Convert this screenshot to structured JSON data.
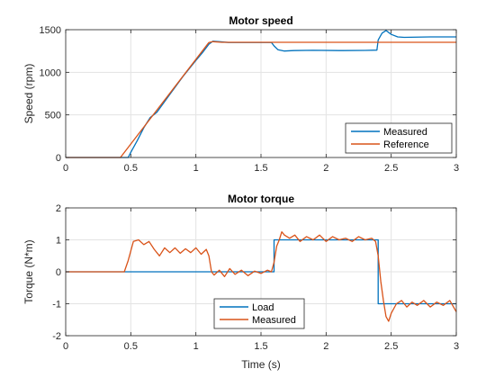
{
  "chart_data": [
    {
      "type": "line",
      "title": "Motor speed",
      "xlabel": "",
      "ylabel": "Speed (rpm)",
      "xlim": [
        0,
        3
      ],
      "ylim": [
        0,
        1500
      ],
      "xticks": [
        0,
        0.5,
        1,
        1.5,
        2,
        2.5,
        3
      ],
      "yticks": [
        0,
        500,
        1000,
        1500
      ],
      "xtick_labels": [
        "0",
        "0.5",
        "1",
        "1.5",
        "2",
        "2.5",
        "3"
      ],
      "ytick_labels": [
        "0",
        "500",
        "1000",
        "1500"
      ],
      "grid": true,
      "legend_position": "bottom-right",
      "series": [
        {
          "name": "Measured",
          "color": "#0072BD",
          "x": [
            0,
            0.48,
            0.5,
            0.55,
            0.6,
            0.65,
            0.7,
            0.8,
            0.9,
            1.0,
            1.05,
            1.1,
            1.13,
            1.18,
            1.25,
            1.4,
            1.58,
            1.6,
            1.63,
            1.68,
            1.75,
            1.9,
            2.1,
            2.3,
            2.39,
            2.4,
            2.43,
            2.46,
            2.5,
            2.55,
            2.6,
            2.8,
            3.0
          ],
          "y": [
            0,
            0,
            60,
            200,
            350,
            470,
            530,
            740,
            950,
            1140,
            1230,
            1330,
            1365,
            1360,
            1350,
            1350,
            1350,
            1310,
            1265,
            1250,
            1255,
            1258,
            1255,
            1257,
            1260,
            1380,
            1460,
            1490,
            1445,
            1415,
            1410,
            1415,
            1415
          ]
        },
        {
          "name": "Reference",
          "color": "#D95319",
          "x": [
            0,
            0.42,
            1.1,
            1.13,
            1.2,
            3.0
          ],
          "y": [
            0,
            0,
            1350,
            1360,
            1352,
            1352
          ]
        }
      ]
    },
    {
      "type": "line",
      "title": "Motor torque",
      "xlabel": "Time (s)",
      "ylabel": "Torque (N*m)",
      "xlim": [
        0,
        3
      ],
      "ylim": [
        -2,
        2
      ],
      "xticks": [
        0,
        0.5,
        1,
        1.5,
        2,
        2.5,
        3
      ],
      "yticks": [
        -2,
        -1,
        0,
        1,
        2
      ],
      "xtick_labels": [
        "0",
        "0.5",
        "1",
        "1.5",
        "2",
        "2.5",
        "3"
      ],
      "ytick_labels": [
        "-2",
        "-1",
        "0",
        "1",
        "2"
      ],
      "grid": true,
      "legend_position": "bottom-center",
      "series": [
        {
          "name": "Load",
          "color": "#0072BD",
          "x": [
            0,
            1.6,
            1.6,
            2.4,
            2.4,
            3.0
          ],
          "y": [
            0,
            0,
            1,
            1,
            -1,
            -1
          ]
        },
        {
          "name": "Measured",
          "color": "#D95319",
          "x": [
            0,
            0.45,
            0.48,
            0.52,
            0.56,
            0.6,
            0.64,
            0.68,
            0.72,
            0.76,
            0.8,
            0.84,
            0.88,
            0.92,
            0.96,
            1.0,
            1.04,
            1.08,
            1.1,
            1.12,
            1.14,
            1.18,
            1.22,
            1.26,
            1.3,
            1.35,
            1.4,
            1.45,
            1.5,
            1.55,
            1.58,
            1.6,
            1.62,
            1.64,
            1.66,
            1.68,
            1.72,
            1.76,
            1.8,
            1.85,
            1.9,
            1.95,
            2.0,
            2.05,
            2.1,
            2.15,
            2.2,
            2.25,
            2.3,
            2.35,
            2.38,
            2.4,
            2.42,
            2.44,
            2.46,
            2.48,
            2.5,
            2.54,
            2.58,
            2.62,
            2.66,
            2.7,
            2.75,
            2.8,
            2.85,
            2.9,
            2.95,
            3.0
          ],
          "y": [
            0,
            0,
            0.35,
            0.95,
            1.0,
            0.85,
            0.95,
            0.7,
            0.5,
            0.75,
            0.6,
            0.75,
            0.58,
            0.72,
            0.6,
            0.75,
            0.55,
            0.7,
            0.5,
            0.0,
            -0.1,
            0.05,
            -0.15,
            0.1,
            -0.08,
            0.05,
            -0.12,
            0.02,
            -0.05,
            0.05,
            0.0,
            0.3,
            0.8,
            1.0,
            1.25,
            1.15,
            1.05,
            1.15,
            0.95,
            1.1,
            1.0,
            1.15,
            0.95,
            1.1,
            1.0,
            1.05,
            0.95,
            1.1,
            1.0,
            1.05,
            0.95,
            0.5,
            -0.3,
            -0.9,
            -1.4,
            -1.55,
            -1.3,
            -1.0,
            -0.9,
            -1.1,
            -0.95,
            -1.05,
            -0.9,
            -1.1,
            -0.95,
            -1.05,
            -0.9,
            -1.25
          ]
        }
      ]
    }
  ]
}
